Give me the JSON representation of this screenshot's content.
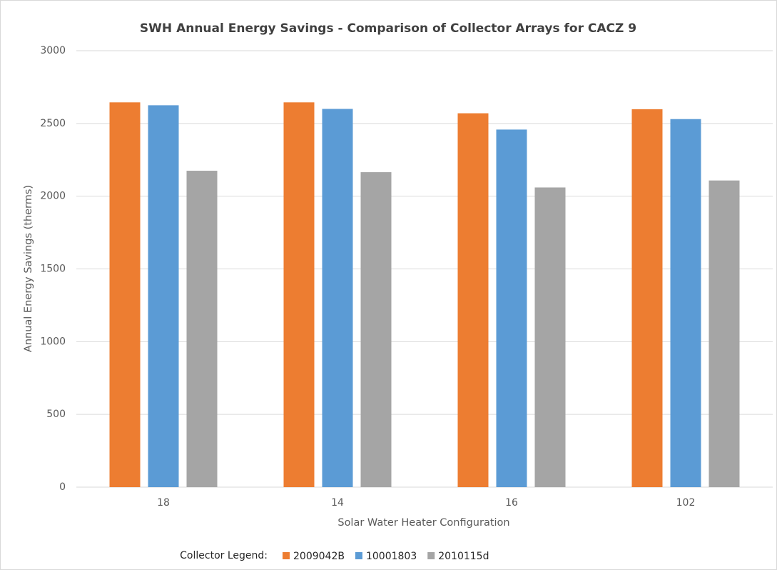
{
  "chart_data": {
    "type": "bar",
    "title": "SWH Annual Energy Savings - Comparison of Collector Arrays for CACZ 9",
    "x_label": "Solar Water Heater Configuration",
    "y_label": "Annual Energy Savings (therms)",
    "legend_title": "Collector Legend:",
    "categories": [
      "18",
      "14",
      "16",
      "102"
    ],
    "series": [
      {
        "name": "2009042B",
        "color": "#ed7d31",
        "values": [
          2645,
          2645,
          2570,
          2598
        ]
      },
      {
        "name": "10001803",
        "color": "#5b9bd5",
        "values": [
          2625,
          2600,
          2458,
          2530
        ]
      },
      {
        "name": "2010115d",
        "color": "#a5a5a5",
        "values": [
          2175,
          2165,
          2060,
          2108
        ]
      }
    ],
    "ylim": [
      0,
      3000
    ],
    "yticks": [
      0,
      500,
      1000,
      1500,
      2000,
      2500,
      3000
    ],
    "grid": true
  }
}
